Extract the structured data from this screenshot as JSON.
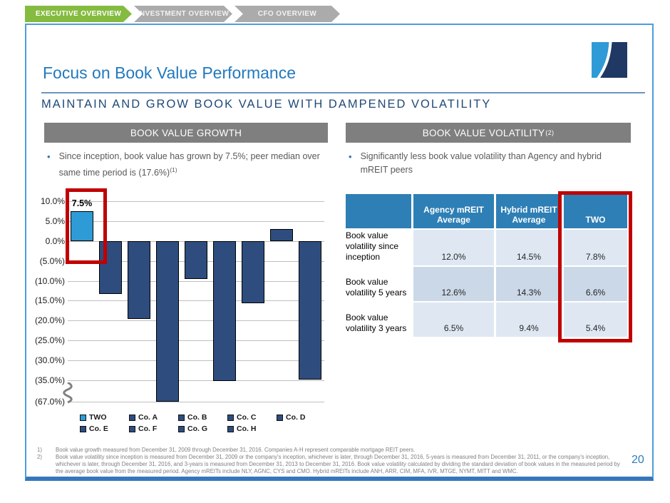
{
  "nav": {
    "tabs": [
      {
        "label": "EXECUTIVE OVERVIEW",
        "active": true
      },
      {
        "label": "INVESTMENT OVERVIEW",
        "active": false
      },
      {
        "label": "CFO OVERVIEW",
        "active": false
      }
    ]
  },
  "slide": {
    "title": "Focus on Book Value Performance",
    "subtitle": "MAINTAIN AND GROW BOOK VALUE WITH DAMPENED VOLATILITY",
    "page_number": "20"
  },
  "left_panel": {
    "header": "BOOK VALUE GROWTH",
    "bullet": "Since inception, book value has grown by 7.5%; peer median over same time period is (17.6%)",
    "bullet_sup": "(1)"
  },
  "right_panel": {
    "header": "BOOK VALUE VOLATILITY",
    "header_sup": "(2)",
    "bullet": "Significantly less book value volatility than Agency and hybrid mREIT peers"
  },
  "chart_data": {
    "type": "bar",
    "categories": [
      "TWO",
      "Co. A",
      "Co. B",
      "Co. C",
      "Co. D",
      "Co. E",
      "Co. F",
      "Co. G",
      "Co. H"
    ],
    "values": [
      7.5,
      -13.3,
      -19.5,
      -67.0,
      -9.5,
      -36.0,
      -15.6,
      3.1,
      -34.8
    ],
    "bar_colors": [
      "#2E9BD6",
      "#2E4D7E",
      "#2E4D7E",
      "#2E4D7E",
      "#2E4D7E",
      "#2E4D7E",
      "#2E4D7E",
      "#2E4D7E",
      "#2E4D7E"
    ],
    "data_labels": [
      {
        "category": "TWO",
        "text": "7.5%"
      }
    ],
    "yticks": [
      10,
      5,
      0,
      -5,
      -10,
      -15,
      -20,
      -25,
      -30,
      -35,
      -67
    ],
    "ytick_labels": [
      "10.0%",
      "5.0%",
      "0.0%",
      "(5.0%)",
      "(10.0%)",
      "(15.0%)",
      "(20.0%)",
      "(25.0%)",
      "(30.0%)",
      "(35.0%)",
      "(67.0%)"
    ],
    "axis_break": {
      "between": [
        -35,
        -67
      ]
    },
    "ylim": [
      -67,
      10
    ],
    "grid": true,
    "title": "",
    "xlabel": "",
    "ylabel": "",
    "legend_position": "bottom",
    "legend": [
      {
        "label": "TWO",
        "color": "#2E9BD6"
      },
      {
        "label": "Co. A",
        "color": "#2E4D7E"
      },
      {
        "label": "Co. B",
        "color": "#2E4D7E"
      },
      {
        "label": "Co. C",
        "color": "#2E4D7E"
      },
      {
        "label": "Co. D",
        "color": "#2E4D7E"
      },
      {
        "label": "Co. E",
        "color": "#2E4D7E"
      },
      {
        "label": "Co. F",
        "color": "#2E4D7E"
      },
      {
        "label": "Co. G",
        "color": "#2E4D7E"
      },
      {
        "label": "Co. H",
        "color": "#2E4D7E"
      }
    ]
  },
  "table": {
    "columns": [
      "",
      "Agency mREIT Average",
      "Hybrid mREIT Average",
      "TWO"
    ],
    "rows": [
      {
        "label": "Book value volatility since inception",
        "values": [
          "12.0%",
          "14.5%",
          "7.8%"
        ]
      },
      {
        "label": "Book value volatility 5 years",
        "values": [
          "12.6%",
          "14.3%",
          "6.6%"
        ]
      },
      {
        "label": "Book value volatility 3 years",
        "values": [
          "6.5%",
          "9.4%",
          "5.4%"
        ]
      }
    ]
  },
  "footnotes": [
    {
      "num": "1)",
      "text": "Book value growth measured from December 31, 2009 through December 31, 2016.  Companies A-H represent comparable mortgage REIT peers."
    },
    {
      "num": "2)",
      "text": "Book value volatility since inception is measured from December 31, 2009 or the company's inception, whichever is later, through December 31, 2016, 5-years is measured from December 31, 2011, or the company's inception, whichever is later, through December 31, 2016, and 3-years is measured from December 31, 2013 to December 31, 2016.  Book value volatility calculated by dividing the standard deviation of book values in the measured period by the average book value from the measured period.  Agency mREITs include NLY, AGNC, CYS and CMO.  Hybrid mREITs include ANH, ARR, CIM, MFA, IVR, MTGE, NYMT, MITT and WMC."
    }
  ],
  "colors": {
    "accent_green": "#85BB40",
    "tab_gray": "#ABABAB",
    "title_blue": "#2279BE",
    "subtitle_navy": "#1F4977",
    "section_header_gray": "#7F7F7F",
    "bar_navy": "#2E4D7E",
    "bar_light_blue": "#2E9BD6",
    "table_header_blue": "#2E7FB5",
    "table_row_light": "#DFE8F2",
    "table_row_medium": "#CBD8E8",
    "highlight_red": "#C00000",
    "frame_blue": "#4C9ED9",
    "bottom_bar_blue": "#3677BB"
  }
}
